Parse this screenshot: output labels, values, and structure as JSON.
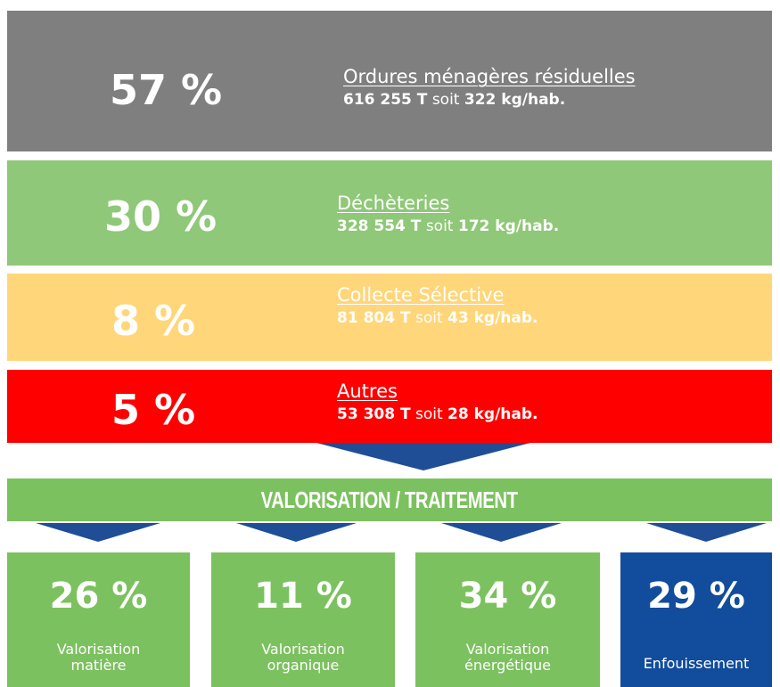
{
  "streams": [
    {
      "percent": "57 %",
      "title": "Ordures ménagères résiduelles",
      "tonnage": "616 255 T",
      "connector": "soit",
      "per_capita": "322 kg/hab."
    },
    {
      "percent": "30 %",
      "title": "Déchèteries",
      "tonnage": "328 554 T",
      "connector": "soit",
      "per_capita": "172 kg/hab."
    },
    {
      "percent": "8 %",
      "title": "Collecte Sélective",
      "tonnage": "81 804 T",
      "connector": "soit",
      "per_capita": "43 kg/hab."
    },
    {
      "percent": "5 %",
      "title": "Autres",
      "tonnage": "53 308 T",
      "connector": "soit",
      "per_capita": "28 kg/hab."
    }
  ],
  "banner": "VALORISATION / TRAITEMENT",
  "outcomes": [
    {
      "percent": "26 %",
      "label": [
        "Valorisation",
        "matière"
      ]
    },
    {
      "percent": "11 %",
      "label": [
        "Valorisation",
        "organique"
      ]
    },
    {
      "percent": "34 %",
      "label": [
        "Valorisation",
        "énergétique"
      ]
    },
    {
      "percent": "29 %",
      "label": [
        "Enfouissement"
      ]
    }
  ]
}
